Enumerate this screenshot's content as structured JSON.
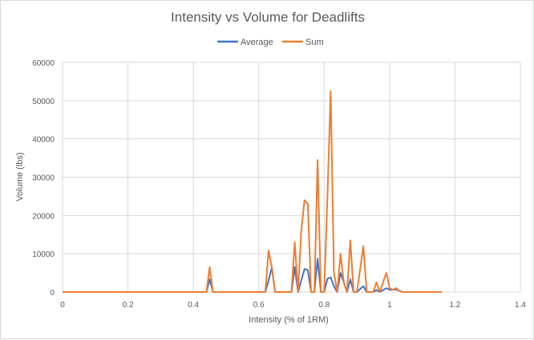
{
  "chart_data": {
    "type": "line",
    "title": "Intensity vs Volume for Deadlifts",
    "xlabel": "Intensity (% of 1RM)",
    "ylabel": "Volume (lbs)",
    "xlim": [
      0,
      1.4
    ],
    "ylim": [
      0,
      60000
    ],
    "x_ticks": [
      "0",
      "0.2",
      "0.4",
      "0.6",
      "0.8",
      "1",
      "1.2",
      "1.4"
    ],
    "y_ticks": [
      "0",
      "10000",
      "20000",
      "30000",
      "40000",
      "50000",
      "60000"
    ],
    "grid": "vertical and horizontal",
    "legend_position": "top",
    "series": [
      {
        "name": "Average",
        "color": "#4472c4",
        "points": [
          [
            0,
            0
          ],
          [
            0.44,
            0
          ],
          [
            0.45,
            3300
          ],
          [
            0.46,
            0
          ],
          [
            0.62,
            0
          ],
          [
            0.63,
            3000
          ],
          [
            0.64,
            6400
          ],
          [
            0.65,
            0
          ],
          [
            0.7,
            0
          ],
          [
            0.71,
            6500
          ],
          [
            0.72,
            0
          ],
          [
            0.73,
            3000
          ],
          [
            0.74,
            6000
          ],
          [
            0.75,
            5800
          ],
          [
            0.76,
            0
          ],
          [
            0.77,
            0
          ],
          [
            0.78,
            8700
          ],
          [
            0.79,
            0
          ],
          [
            0.8,
            0
          ],
          [
            0.81,
            3500
          ],
          [
            0.82,
            3800
          ],
          [
            0.83,
            1500
          ],
          [
            0.84,
            0
          ],
          [
            0.85,
            5000
          ],
          [
            0.86,
            2500
          ],
          [
            0.87,
            0
          ],
          [
            0.88,
            3300
          ],
          [
            0.89,
            0
          ],
          [
            0.9,
            0
          ],
          [
            0.91,
            800
          ],
          [
            0.92,
            1500
          ],
          [
            0.93,
            0
          ],
          [
            0.95,
            0
          ],
          [
            0.96,
            500
          ],
          [
            0.97,
            0
          ],
          [
            0.99,
            1000
          ],
          [
            1.0,
            600
          ],
          [
            1.01,
            600
          ],
          [
            1.02,
            700
          ],
          [
            1.03,
            300
          ],
          [
            1.04,
            0
          ],
          [
            1.16,
            0
          ]
        ]
      },
      {
        "name": "Sum",
        "color": "#ed7d31",
        "points": [
          [
            0,
            0
          ],
          [
            0.44,
            0
          ],
          [
            0.45,
            6500
          ],
          [
            0.46,
            0
          ],
          [
            0.62,
            0
          ],
          [
            0.63,
            10800
          ],
          [
            0.64,
            6500
          ],
          [
            0.65,
            0
          ],
          [
            0.7,
            0
          ],
          [
            0.71,
            13000
          ],
          [
            0.72,
            0
          ],
          [
            0.73,
            16000
          ],
          [
            0.74,
            24000
          ],
          [
            0.75,
            23000
          ],
          [
            0.76,
            0
          ],
          [
            0.77,
            0
          ],
          [
            0.78,
            34500
          ],
          [
            0.79,
            0
          ],
          [
            0.8,
            0
          ],
          [
            0.81,
            25000
          ],
          [
            0.82,
            52500
          ],
          [
            0.83,
            5000
          ],
          [
            0.84,
            0
          ],
          [
            0.85,
            10000
          ],
          [
            0.86,
            2500
          ],
          [
            0.87,
            0
          ],
          [
            0.88,
            13500
          ],
          [
            0.89,
            0
          ],
          [
            0.9,
            0
          ],
          [
            0.91,
            6000
          ],
          [
            0.92,
            12000
          ],
          [
            0.93,
            0
          ],
          [
            0.95,
            0
          ],
          [
            0.96,
            2500
          ],
          [
            0.97,
            0
          ],
          [
            0.99,
            5000
          ],
          [
            1.0,
            1000
          ],
          [
            1.01,
            600
          ],
          [
            1.02,
            1000
          ],
          [
            1.03,
            300
          ],
          [
            1.04,
            0
          ],
          [
            1.16,
            0
          ]
        ]
      }
    ]
  }
}
